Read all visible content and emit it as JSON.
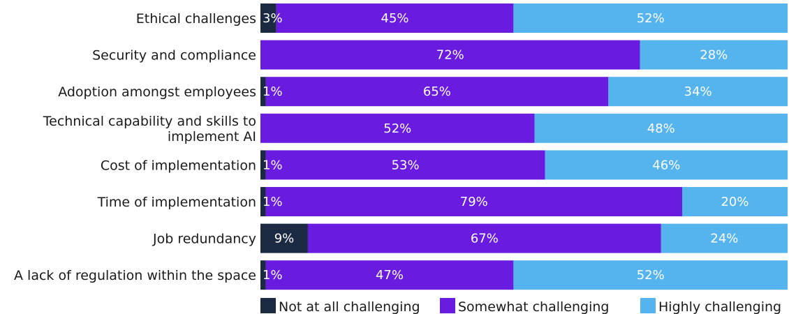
{
  "chart_data": {
    "type": "bar",
    "orientation": "horizontal",
    "stacked": true,
    "categories": [
      "Ethical challenges",
      "Security and compliance",
      "Adoption amongst employees",
      "Technical capability and skills to implement AI",
      "Cost of implementation",
      "Time of implementation",
      "Job redundancy",
      "A lack of regulation within the space"
    ],
    "series": [
      {
        "name": "Not at all challenging",
        "color": "#1b2a42",
        "values": [
          3,
          0,
          1,
          0,
          1,
          1,
          9,
          1
        ]
      },
      {
        "name": "Somewhat challenging",
        "color": "#6a1be0",
        "values": [
          45,
          72,
          65,
          52,
          53,
          79,
          67,
          47
        ]
      },
      {
        "name": "Highly challenging",
        "color": "#55b4ee",
        "values": [
          52,
          28,
          34,
          48,
          46,
          20,
          24,
          52
        ]
      }
    ],
    "value_suffix": "%",
    "xlim": [
      0,
      100
    ],
    "legend": "bottom",
    "grid": false
  }
}
